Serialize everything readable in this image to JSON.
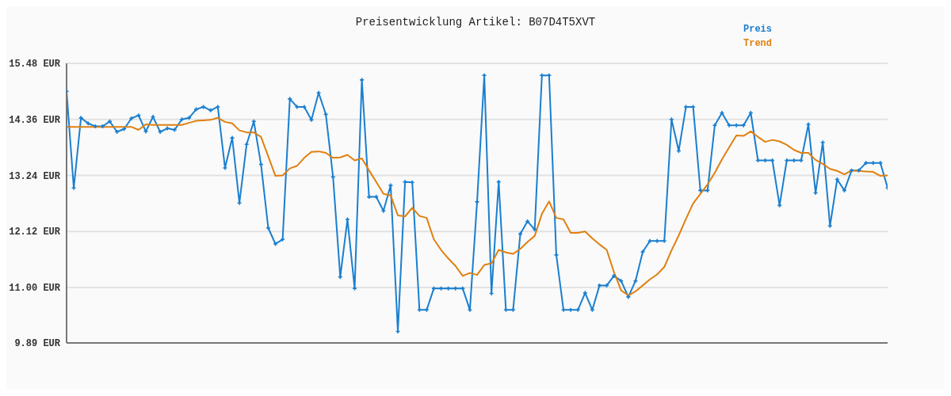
{
  "chart_data": {
    "type": "line",
    "title": "Preisentwicklung Artikel: B07D4T5XVT",
    "categories": [
      null,
      null,
      null,
      null,
      null,
      null,
      null,
      null,
      null,
      null,
      null,
      null,
      null,
      null,
      null,
      null,
      null,
      null,
      null,
      null,
      null,
      null,
      null,
      null,
      null,
      null,
      null,
      null,
      null,
      null,
      null,
      null,
      null,
      null,
      null,
      null,
      null,
      null,
      null,
      null,
      null,
      null,
      null,
      null,
      null,
      null,
      null,
      null,
      null,
      null,
      null,
      null,
      null,
      null,
      null,
      null,
      null,
      null,
      null,
      null,
      null,
      null,
      null,
      null,
      null,
      null,
      null,
      null,
      null,
      null,
      null,
      null,
      null,
      null,
      null,
      null,
      null,
      null,
      null,
      null,
      null,
      null,
      null,
      null,
      null,
      null,
      null,
      null,
      null,
      null,
      null,
      null,
      null,
      null,
      null,
      null,
      null,
      null,
      null,
      null,
      null,
      null,
      null,
      null,
      null,
      null,
      null,
      null,
      null,
      null,
      null,
      null,
      null,
      null,
      null
    ],
    "series": [
      {
        "name": "Preis",
        "color": "#1a7fcf",
        "marker": "cross",
        "values": [
          14.92,
          12.99,
          14.39,
          14.28,
          14.22,
          14.22,
          14.32,
          14.11,
          14.17,
          14.38,
          14.44,
          14.12,
          14.41,
          14.11,
          14.18,
          14.15,
          14.36,
          14.39,
          14.56,
          14.61,
          14.54,
          14.61,
          13.39,
          13.99,
          12.69,
          13.86,
          14.32,
          13.46,
          12.19,
          11.87,
          11.96,
          14.77,
          14.61,
          14.61,
          14.35,
          14.89,
          14.46,
          13.21,
          11.21,
          12.36,
          10.98,
          15.15,
          12.81,
          12.81,
          12.53,
          13.04,
          10.12,
          13.11,
          13.1,
          10.55,
          10.55,
          10.98,
          10.98,
          10.98,
          10.98,
          10.98,
          10.55,
          12.71,
          15.24,
          10.88,
          13.11,
          10.55,
          10.55,
          12.07,
          12.32,
          12.16,
          15.24,
          15.24,
          11.65,
          10.55,
          10.55,
          10.55,
          10.89,
          10.55,
          11.04,
          11.04,
          11.23,
          11.13,
          10.81,
          11.13,
          11.71,
          11.93,
          11.93,
          11.93,
          14.36,
          13.73,
          14.61,
          14.61,
          12.94,
          12.94,
          14.24,
          14.49,
          14.24,
          14.24,
          14.24,
          14.49,
          13.54,
          13.54,
          13.54,
          12.64,
          13.54,
          13.54,
          13.54,
          14.26,
          12.89,
          13.9,
          12.23,
          13.16,
          12.94,
          13.34,
          13.34,
          13.49,
          13.49,
          13.49,
          12.99
        ]
      },
      {
        "name": "Trend",
        "color": "#e08010",
        "marker": "none",
        "values": [
          14.21,
          14.21,
          14.21,
          14.21,
          14.21,
          14.21,
          14.21,
          14.21,
          14.21,
          14.21,
          14.15,
          14.26,
          14.25,
          14.25,
          14.25,
          14.25,
          14.25,
          14.29,
          14.33,
          14.34,
          14.35,
          14.39,
          14.31,
          14.28,
          14.14,
          14.1,
          14.1,
          14.01,
          13.62,
          13.23,
          13.24,
          13.38,
          13.43,
          13.59,
          13.71,
          13.72,
          13.69,
          13.59,
          13.6,
          13.65,
          13.54,
          13.58,
          13.34,
          13.11,
          12.87,
          12.84,
          12.44,
          12.42,
          12.59,
          12.43,
          12.39,
          11.96,
          11.75,
          11.58,
          11.43,
          11.23,
          11.29,
          11.25,
          11.45,
          11.48,
          11.75,
          11.7,
          11.67,
          11.77,
          11.91,
          12.03,
          12.47,
          12.72,
          12.39,
          12.36,
          12.09,
          12.09,
          12.12,
          11.98,
          11.86,
          11.75,
          11.31,
          10.94,
          10.84,
          10.92,
          11.04,
          11.16,
          11.26,
          11.41,
          11.74,
          12.04,
          12.37,
          12.68,
          12.87,
          13.06,
          13.29,
          13.56,
          13.8,
          14.04,
          14.03,
          14.12,
          14.01,
          13.91,
          13.95,
          13.92,
          13.85,
          13.75,
          13.69,
          13.69,
          13.55,
          13.47,
          13.37,
          13.33,
          13.26,
          13.34,
          13.33,
          13.32,
          13.31,
          13.23,
          13.24
        ]
      }
    ],
    "ylim": [
      9.89,
      15.48
    ],
    "yticks": [
      {
        "value": 9.89,
        "label": "9.89 EUR"
      },
      {
        "value": 11.0,
        "label": "11.00 EUR"
      },
      {
        "value": 12.12,
        "label": "12.12 EUR"
      },
      {
        "value": 13.24,
        "label": "13.24 EUR"
      },
      {
        "value": 14.36,
        "label": "14.36 EUR"
      },
      {
        "value": 15.48,
        "label": "15.48 EUR"
      }
    ],
    "grid": "y",
    "legend": "top right",
    "line_style": "solid"
  }
}
